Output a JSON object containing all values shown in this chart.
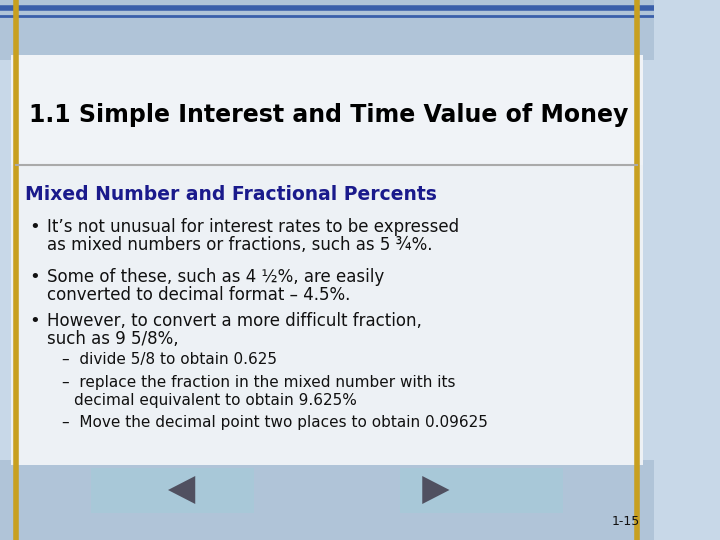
{
  "title": "1.1 Simple Interest and Time Value of Money",
  "subtitle": "Mixed Number and Fractional Percents",
  "bullet1_line1": "It’s not unusual for interest rates to be expressed",
  "bullet1_line2": "as mixed numbers or fractions, such as 5 ¾%.",
  "bullet2_line1": "Some of these, such as 4 ½%, are easily",
  "bullet2_line2": "converted to decimal format – 4.5%.",
  "bullet3_line1": "However, to convert a more difficult fraction,",
  "bullet3_line2": "such as 9 5/8%,",
  "sub1": "–  divide 5/8 to obtain 0.625",
  "sub2_line1": "–  replace the fraction in the mixed number with its",
  "sub2_line2": "   decimal equivalent to obtain 9.625%",
  "sub3": "–  Move the decimal point two places to obtain 0.09625",
  "page_number": "1-15",
  "bg_top_color": "#c8d8e8",
  "slide_bg_color": "#eef2f6",
  "white_panel_color": "#f5f7fa",
  "title_color": "#000000",
  "subtitle_color": "#1a1a8c",
  "body_color": "#111111",
  "gold_line_color": "#c8a020",
  "blue_line_color": "#3a5faa",
  "button_color": "#a8c8d8",
  "button_arrow_color": "#505060",
  "separator_color": "#aaaaaa"
}
